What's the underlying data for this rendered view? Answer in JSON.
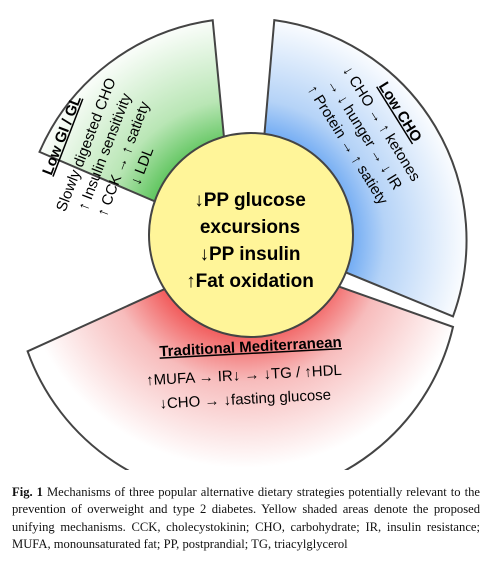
{
  "diagram": {
    "center": {
      "lines": [
        "↓PP glucose",
        "excursions",
        "↓PP insulin",
        "↑Fat oxidation"
      ]
    },
    "left_segment": {
      "title": "Low GI / GL",
      "lines": [
        "Slowly digested CHO",
        "↑ Insulin sensitivity",
        "↑ CCK → ↑ satiety",
        "↓ LDL"
      ],
      "color": "#3cb83c"
    },
    "right_segment": {
      "title": "Low CHO",
      "lines": [
        "↓ CHO → ↑ ketones",
        "→ ↓ hunger → ↓ IR",
        "↑ Protein → ↑ satiety"
      ],
      "color": "#3c8cf0"
    },
    "bottom_segment": {
      "title": "Traditional Mediterranean",
      "lines": [
        "↑MUFA → IR↓ → ↓TG / ↑HDL",
        "↓CHO → ↓fasting glucose"
      ],
      "color": "#f04040"
    },
    "center_color": "#fff599"
  },
  "caption": {
    "label": "Fig. 1",
    "text": "Mechanisms of three popular alternative dietary strategies potentially relevant to the prevention of overweight and type 2 diabetes. Yellow shaded areas denote the proposed unifying mechanisms. CCK, cholecystokinin; CHO, carbohydrate; IR, insulin resistance; MUFA, monounsaturated fat; PP, postprandial; TG, triacylglycerol"
  }
}
